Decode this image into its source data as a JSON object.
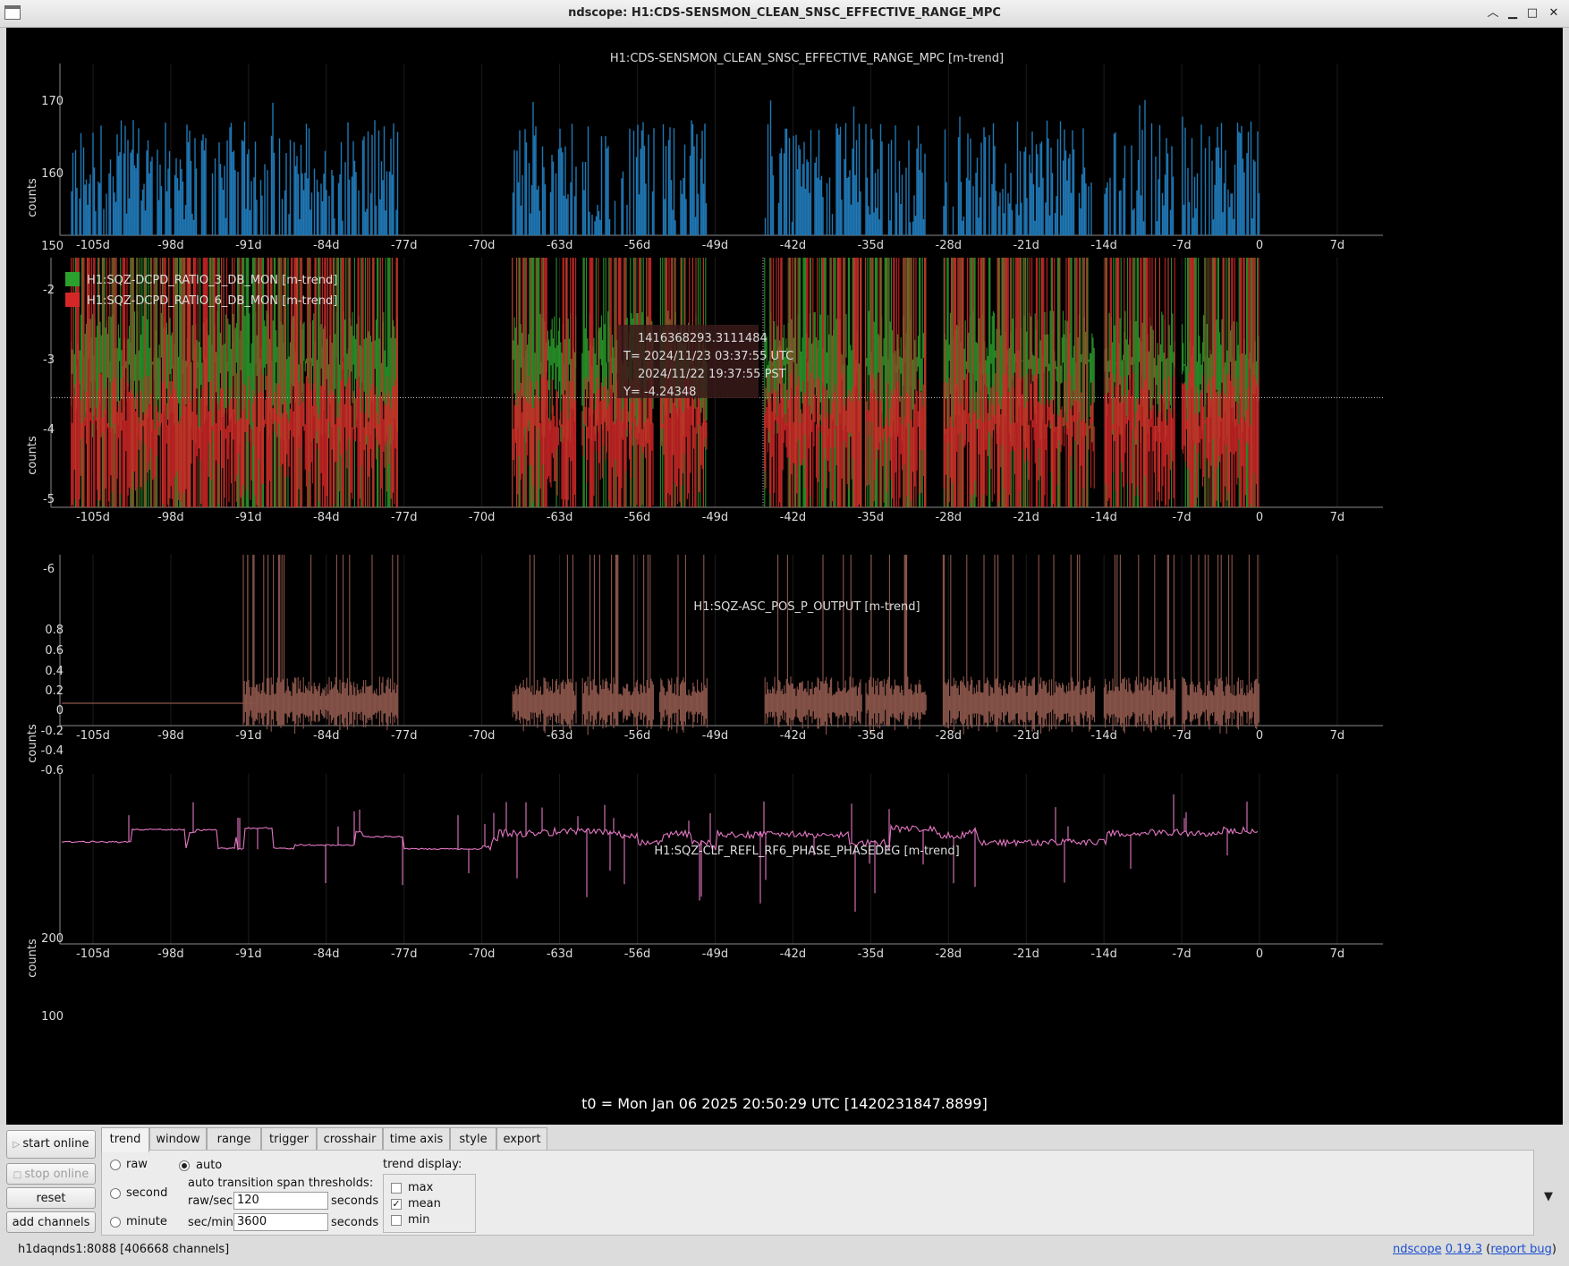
{
  "window": {
    "title": "ndscope: H1:CDS-SENSMON_CLEAN_SNSC_EFFECTIVE_RANGE_MPC"
  },
  "x_axis": {
    "ticks": [
      "-105d",
      "-98d",
      "-91d",
      "-84d",
      "-77d",
      "-70d",
      "-63d",
      "-56d",
      "-49d",
      "-42d",
      "-35d",
      "-28d",
      "-21d",
      "-14d",
      "-7d",
      "0",
      "7d"
    ]
  },
  "plots": [
    {
      "title": "H1:CDS-SENSMON_CLEAN_SNSC_EFFECTIVE_RANGE_MPC [m-trend]",
      "ylabel": "counts",
      "yticks": [
        "170",
        "160",
        "150"
      ],
      "color": "#1f77b4"
    },
    {
      "title": "",
      "ylabel": "counts",
      "yticks": [
        "-2",
        "-3",
        "-4",
        "-5",
        "-6"
      ],
      "legend": [
        {
          "label": "H1:SQZ-DCPD_RATIO_3_DB_MON [m-trend]",
          "color": "#2ca02c"
        },
        {
          "label": "H1:SQZ-DCPD_RATIO_6_DB_MON [m-trend]",
          "color": "#d62728"
        }
      ],
      "crosshair": {
        "gps": "1416368293.3111484",
        "utc": "T= 2024/11/23 03:37:55 UTC",
        "pst": "2024/11/22 19:37:55 PST",
        "y": "Y= -4.24348"
      }
    },
    {
      "title": "H1:SQZ-ASC_POS_P_OUTPUT [m-trend]",
      "ylabel": "counts",
      "yticks": [
        "0.8",
        "0.6",
        "0.4",
        "0.2",
        "0",
        "-0.2",
        "-0.4",
        "-0.6"
      ],
      "color": "#8c564b"
    },
    {
      "title": "H1:SQZ-CLF_REFL_RF6_PHASE_PHASEDEG [m-trend]",
      "ylabel": "counts",
      "yticks": [
        "200",
        "100"
      ],
      "color": "#e377c2"
    }
  ],
  "t0": "t0 = Mon Jan 06 2025 20:50:29 UTC [1420231847.8899]",
  "controls": {
    "buttons": {
      "start": "start online",
      "stop": "stop online",
      "reset": "reset",
      "add": "add channels"
    },
    "tabs": [
      "trend",
      "window",
      "range",
      "trigger",
      "crosshair",
      "time axis",
      "style",
      "export"
    ],
    "trend": {
      "raw": "raw",
      "second": "second",
      "minute": "minute",
      "auto": "auto",
      "thresholds_label": "auto transition span thresholds:",
      "raw_sec_label": "raw/sec:",
      "raw_sec_value": "120",
      "sec_min_label": "sec/min:",
      "sec_min_value": "3600",
      "seconds": "seconds",
      "display_label": "trend display:",
      "max": "max",
      "mean": "mean",
      "min": "min"
    }
  },
  "status": {
    "server": "h1daqnds1:8088  [406668 channels]",
    "app": "ndscope",
    "version": "0.19.3",
    "report": "report bug"
  }
}
